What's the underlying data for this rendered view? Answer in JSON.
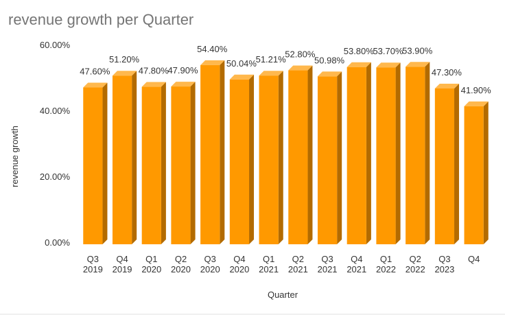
{
  "chart_data": {
    "type": "bar",
    "style": "3d-column",
    "title": "revenue growth per Quarter",
    "xlabel": "Quarter",
    "ylabel": "revenue growth",
    "ylim": [
      0,
      60
    ],
    "yticks": [
      "0.00%",
      "20.00%",
      "40.00%",
      "60.00%"
    ],
    "grid": false,
    "legend": "none",
    "bar_color": "#ff9900",
    "bar_top_color": "#ffb84d",
    "bar_side_color": "#b36b00",
    "categories": [
      {
        "q": "Q3",
        "y": "2019"
      },
      {
        "q": "Q4",
        "y": "2019"
      },
      {
        "q": "Q1",
        "y": "2020"
      },
      {
        "q": "Q2",
        "y": "2020"
      },
      {
        "q": "Q3",
        "y": "2020"
      },
      {
        "q": "Q4",
        "y": "2020"
      },
      {
        "q": "Q1",
        "y": "2021"
      },
      {
        "q": "Q2",
        "y": "2021"
      },
      {
        "q": "Q3",
        "y": "2021"
      },
      {
        "q": "Q4",
        "y": "2021"
      },
      {
        "q": "Q1",
        "y": "2022"
      },
      {
        "q": "Q2",
        "y": "2022"
      },
      {
        "q": "Q3",
        "y": "2023"
      },
      {
        "q": "Q4",
        "y": ""
      }
    ],
    "values": [
      47.6,
      51.2,
      47.8,
      47.9,
      54.4,
      50.04,
      51.21,
      52.8,
      50.98,
      53.8,
      53.7,
      53.9,
      47.3,
      41.9
    ],
    "labels": [
      "47.60%",
      "51.20%",
      "47.80%",
      "47.90%",
      "54.40%",
      "50.04%",
      "51.21%",
      "52.80%",
      "50.98%",
      "53.80%",
      "53.70%",
      "53.90%",
      "47.30%",
      "41.90%"
    ]
  }
}
